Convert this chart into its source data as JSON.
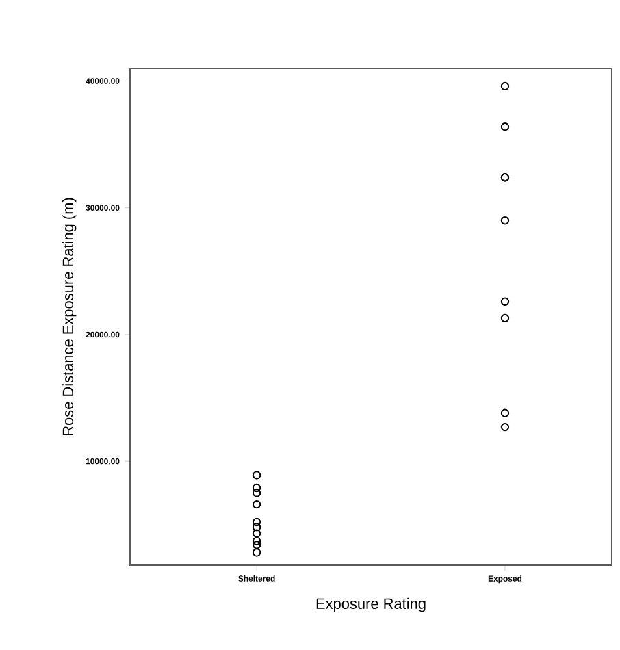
{
  "chart_data": {
    "type": "scatter",
    "xlabel": "Exposure Rating",
    "ylabel": "Rose Distance Exposure Rating (m)",
    "categories": [
      "Sheltered",
      "Exposed"
    ],
    "series": [
      {
        "color": "#000000",
        "x": [
          "Sheltered",
          "Sheltered",
          "Sheltered",
          "Sheltered",
          "Sheltered",
          "Sheltered",
          "Sheltered",
          "Sheltered",
          "Sheltered",
          "Sheltered",
          "Exposed",
          "Exposed",
          "Exposed",
          "Exposed",
          "Exposed",
          "Exposed",
          "Exposed",
          "Exposed",
          "Exposed"
        ],
        "values": [
          8900,
          7900,
          7500,
          6600,
          5200,
          4800,
          4300,
          3700,
          3400,
          2800,
          39600,
          36400,
          32400,
          32400,
          29000,
          22600,
          21300,
          13800,
          12700
        ]
      }
    ],
    "ylim": [
      1800,
      41000
    ],
    "yticks": [
      {
        "value": 10000,
        "label": "10000.00"
      },
      {
        "value": 20000,
        "label": "20000.00"
      },
      {
        "value": 30000,
        "label": "30000.00"
      },
      {
        "value": 40000,
        "label": "40000.00"
      }
    ],
    "marker": "circle"
  }
}
